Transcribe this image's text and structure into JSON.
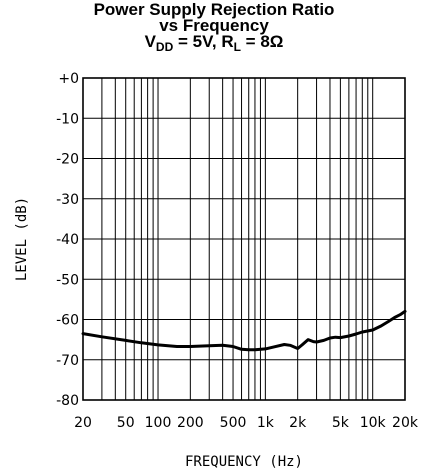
{
  "chart_data": {
    "type": "line",
    "title_line1": "Power Supply Rejection Ratio",
    "title_line2": "vs Frequency",
    "title_line3": {
      "v": "V",
      "v_sub": "DD",
      "v_val": " = 5V, ",
      "r": "R",
      "r_sub": "L",
      "r_val": " = 8Ω"
    },
    "xlabel": "FREQUENCY (Hz)",
    "ylabel": "LEVEL (dB)",
    "xscale": "log",
    "xlim": [
      20,
      20000
    ],
    "ylim": [
      -80,
      0
    ],
    "grid": true,
    "x_ticks": [
      {
        "v": 20,
        "label": "20"
      },
      {
        "v": 50,
        "label": "50"
      },
      {
        "v": 100,
        "label": "100"
      },
      {
        "v": 200,
        "label": "200"
      },
      {
        "v": 500,
        "label": "500"
      },
      {
        "v": 1000,
        "label": "1k"
      },
      {
        "v": 2000,
        "label": "2k"
      },
      {
        "v": 5000,
        "label": "5k"
      },
      {
        "v": 10000,
        "label": "10k"
      },
      {
        "v": 20000,
        "label": "20k"
      }
    ],
    "y_ticks": [
      {
        "v": 0,
        "label": "+0"
      },
      {
        "v": -10,
        "label": "-10"
      },
      {
        "v": -20,
        "label": "-20"
      },
      {
        "v": -30,
        "label": "-30"
      },
      {
        "v": -40,
        "label": "-40"
      },
      {
        "v": -50,
        "label": "-50"
      },
      {
        "v": -60,
        "label": "-60"
      },
      {
        "v": -70,
        "label": "-70"
      },
      {
        "v": -80,
        "label": "-80"
      }
    ],
    "series": [
      {
        "color": "#000000",
        "x": [
          20,
          30,
          50,
          70,
          100,
          150,
          200,
          300,
          400,
          500,
          600,
          700,
          800,
          1000,
          1200,
          1500,
          1700,
          2000,
          2200,
          2500,
          2800,
          3000,
          3500,
          4000,
          4500,
          5000,
          6000,
          7000,
          8000,
          10000,
          12000,
          14000,
          16000,
          18000,
          20000
        ],
        "y": [
          -63.5,
          -64.3,
          -65.2,
          -65.8,
          -66.3,
          -66.7,
          -66.7,
          -66.5,
          -66.4,
          -66.7,
          -67.4,
          -67.5,
          -67.5,
          -67.3,
          -66.8,
          -66.2,
          -66.4,
          -67.2,
          -66.3,
          -65.0,
          -65.5,
          -65.6,
          -65.2,
          -64.6,
          -64.4,
          -64.5,
          -64.1,
          -63.6,
          -63.1,
          -62.6,
          -61.6,
          -60.5,
          -59.5,
          -58.8,
          -58.0
        ]
      }
    ]
  }
}
